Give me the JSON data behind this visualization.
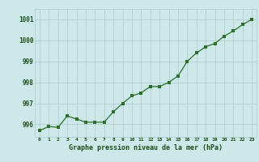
{
  "x": [
    0,
    1,
    2,
    3,
    4,
    5,
    6,
    7,
    8,
    9,
    10,
    11,
    12,
    13,
    14,
    15,
    16,
    17,
    18,
    19,
    20,
    21,
    22,
    23
  ],
  "y": [
    995.7,
    995.9,
    995.85,
    996.4,
    996.25,
    996.1,
    996.1,
    996.1,
    996.6,
    997.0,
    997.35,
    997.5,
    997.8,
    997.8,
    998.0,
    998.3,
    999.0,
    999.4,
    999.7,
    999.85,
    1000.2,
    1000.45,
    1000.75,
    1001.0
  ],
  "line_color": "#2d6e2d",
  "marker_color": "#2d6e2d",
  "bg_color": "#cce8e8",
  "grid_color": "#aacaca",
  "xlabel": "Graphe pression niveau de la mer (hPa)",
  "xlabel_color": "#1a4e1a",
  "tick_color": "#1a4e1a",
  "ylim": [
    995.4,
    1001.5
  ],
  "xlim": [
    -0.5,
    23.5
  ],
  "yticks": [
    996,
    997,
    998,
    999,
    1000,
    1001
  ],
  "xticks": [
    0,
    1,
    2,
    3,
    4,
    5,
    6,
    7,
    8,
    9,
    10,
    11,
    12,
    13,
    14,
    15,
    16,
    17,
    18,
    19,
    20,
    21,
    22,
    23
  ]
}
